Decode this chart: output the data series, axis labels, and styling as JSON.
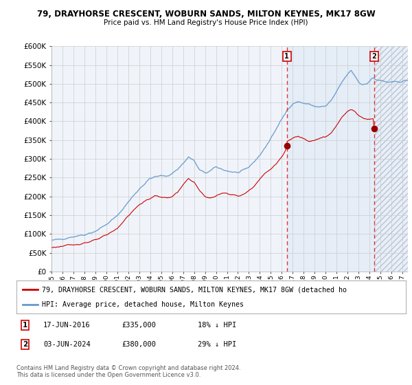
{
  "title1": "79, DRAYHORSE CRESCENT, WOBURN SANDS, MILTON KEYNES, MK17 8GW",
  "title2": "Price paid vs. HM Land Registry's House Price Index (HPI)",
  "legend_line1": "79, DRAYHORSE CRESCENT, WOBURN SANDS, MILTON KEYNES, MK17 8GW (detached ho",
  "legend_line2": "HPI: Average price, detached house, Milton Keynes",
  "annotation1_date": "17-JUN-2016",
  "annotation1_price": "£335,000",
  "annotation1_hpi": "18% ↓ HPI",
  "annotation2_date": "03-JUN-2024",
  "annotation2_price": "£380,000",
  "annotation2_hpi": "29% ↓ HPI",
  "copyright": "Contains HM Land Registry data © Crown copyright and database right 2024.\nThis data is licensed under the Open Government Licence v3.0.",
  "hpi_color": "#6699cc",
  "property_color": "#cc0000",
  "marker_color": "#990000",
  "vline_color": "#dd3333",
  "grid_color": "#cccccc",
  "plot_bg": "#f0f4fa",
  "hatch_bg": "#e8eef5",
  "shade_bg": "#dde8f5",
  "ylim_min": 0,
  "ylim_max": 600000,
  "xmin": 1995.0,
  "xmax": 2027.5,
  "date1_t": 2016.461,
  "date2_t": 2024.42,
  "sale1_price": 335000,
  "sale2_price": 380000
}
